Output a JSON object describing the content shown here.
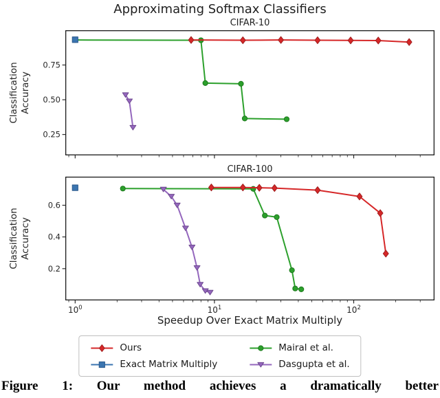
{
  "figure": {
    "title": "Approximating Softmax Classifiers",
    "xlabel": "Speedup Over Exact Matrix Multiply",
    "ylabel": "Classification\nAccuracy",
    "caption": "Figure 1: Our method achieves a dramatically better"
  },
  "legend": {
    "items": [
      {
        "label": "Ours",
        "color": "#d62728",
        "edge": "#a01f1f",
        "marker": "diamond"
      },
      {
        "label": "Exact Matrix Multiply",
        "color": "#3b75b0",
        "edge": "#2c5a8c",
        "marker": "square"
      },
      {
        "label": "Mairal et al.",
        "color": "#2ca02c",
        "edge": "#1e7a1e",
        "marker": "circle"
      },
      {
        "label": "Dasgupta et al.",
        "color": "#9467bd",
        "edge": "#6f4a91",
        "marker": "triangle-down"
      }
    ]
  },
  "chart_data": [
    {
      "type": "line",
      "title": "CIFAR-10",
      "xscale": "log",
      "xlim": [
        0.85,
        380
      ],
      "ylim": [
        0.1,
        1.0
      ],
      "yticks": [
        0.25,
        0.5,
        0.75
      ],
      "ytick_labels": [
        "0.25",
        "0.50",
        "0.75"
      ],
      "xtick_exponents": [
        0,
        1,
        2
      ],
      "series": [
        {
          "name": "Mairal et al.",
          "color": "#2ca02c",
          "edge": "#1e7a1e",
          "marker": "circle",
          "points": [
            [
              1.0,
              0.93
            ],
            [
              8.0,
              0.928
            ],
            [
              8.6,
              0.62
            ],
            [
              15.5,
              0.615
            ],
            [
              16.5,
              0.365
            ],
            [
              33,
              0.36
            ]
          ]
        },
        {
          "name": "Dasgupta et al.",
          "color": "#9467bd",
          "edge": "#6f4a91",
          "marker": "triangle-down",
          "points": [
            [
              2.3,
              0.535
            ],
            [
              2.45,
              0.49
            ],
            [
              2.6,
              0.3
            ]
          ]
        },
        {
          "name": "Ours",
          "color": "#d62728",
          "edge": "#a01f1f",
          "marker": "diamond",
          "points": [
            [
              6.8,
              0.93
            ],
            [
              16,
              0.928
            ],
            [
              30,
              0.93
            ],
            [
              55,
              0.928
            ],
            [
              95,
              0.927
            ],
            [
              150,
              0.926
            ],
            [
              250,
              0.915
            ]
          ]
        },
        {
          "name": "Exact Matrix Multiply",
          "color": "#3b75b0",
          "edge": "#2c5a8c",
          "marker": "square",
          "points": [
            [
              1.0,
              0.932
            ]
          ]
        }
      ]
    },
    {
      "type": "line",
      "title": "CIFAR-100",
      "xscale": "log",
      "xlim": [
        0.85,
        380
      ],
      "ylim": [
        0.0,
        0.78
      ],
      "yticks": [
        0.2,
        0.4,
        0.6
      ],
      "ytick_labels": [
        "0.2",
        "0.4",
        "0.6"
      ],
      "xtick_exponents": [
        0,
        1,
        2
      ],
      "series": [
        {
          "name": "Mairal et al.",
          "color": "#2ca02c",
          "edge": "#1e7a1e",
          "marker": "circle",
          "points": [
            [
              2.2,
              0.705
            ],
            [
              19,
              0.703
            ],
            [
              23,
              0.535
            ],
            [
              28,
              0.525
            ],
            [
              36,
              0.19
            ],
            [
              38,
              0.075
            ],
            [
              42,
              0.07
            ]
          ]
        },
        {
          "name": "Dasgupta et al.",
          "color": "#9467bd",
          "edge": "#6f4a91",
          "marker": "triangle-down",
          "points": [
            [
              4.3,
              0.7
            ],
            [
              4.9,
              0.655
            ],
            [
              5.4,
              0.6
            ],
            [
              6.2,
              0.455
            ],
            [
              6.9,
              0.335
            ],
            [
              7.5,
              0.205
            ],
            [
              7.9,
              0.1
            ],
            [
              8.6,
              0.06
            ],
            [
              9.3,
              0.05
            ]
          ]
        },
        {
          "name": "Ours",
          "color": "#d62728",
          "edge": "#a01f1f",
          "marker": "diamond",
          "points": [
            [
              9.5,
              0.712
            ],
            [
              16,
              0.712
            ],
            [
              21,
              0.71
            ],
            [
              27,
              0.708
            ],
            [
              55,
              0.695
            ],
            [
              110,
              0.655
            ],
            [
              155,
              0.55
            ],
            [
              170,
              0.295
            ]
          ]
        },
        {
          "name": "Exact Matrix Multiply",
          "color": "#3b75b0",
          "edge": "#2c5a8c",
          "marker": "square",
          "points": [
            [
              1.0,
              0.71
            ]
          ]
        }
      ]
    }
  ]
}
